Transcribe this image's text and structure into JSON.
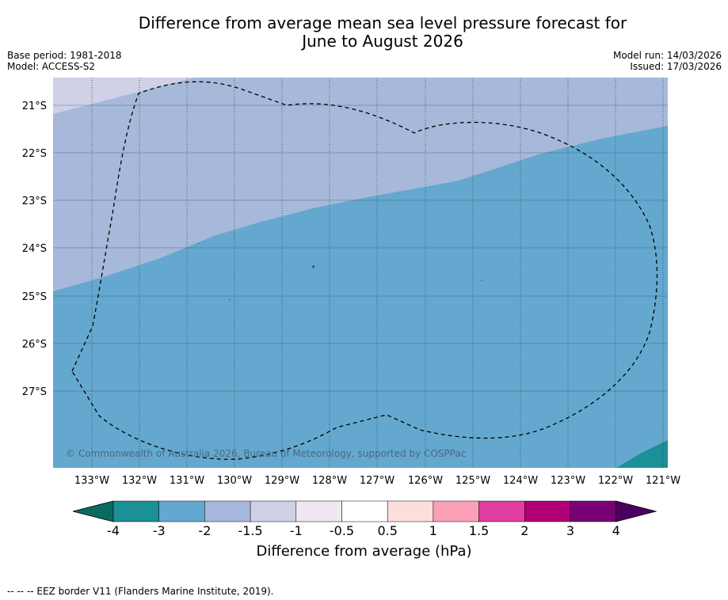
{
  "title": {
    "line1": "Difference from average mean sea level pressure forecast for",
    "line2": "June to August 2026"
  },
  "meta": {
    "base_period": "Base period: 1981-2018",
    "model": "Model: ACCESS-S2",
    "model_run": "Model run: 14/03/2026",
    "issued": "Issued: 17/03/2026"
  },
  "map": {
    "copyright": "© Commonwealth of Australia 2026, Bureau of Meteorology, supported by COSPPac",
    "lon_labels": [
      "133°W",
      "132°W",
      "131°W",
      "130°W",
      "129°W",
      "128°W",
      "127°W",
      "126°W",
      "125°W",
      "124°W",
      "123°W",
      "122°W",
      "121°W"
    ],
    "lat_labels": [
      "21°S",
      "22°S",
      "23°S",
      "24°S",
      "25°S",
      "26°S",
      "27°S"
    ]
  },
  "colorbar": {
    "label": "Difference from average (hPa)",
    "ticks": [
      "-4",
      "-3",
      "-2",
      "-1.5",
      "-1",
      "-0.5",
      "0.5",
      "1",
      "1.5",
      "2",
      "3",
      "4"
    ],
    "colors": [
      "#1b9096",
      "#64a8cf",
      "#a6b9da",
      "#d0d0e6",
      "#efe8f2",
      "#ffffff",
      "#fddedd",
      "#fba0b8",
      "#df3da0",
      "#b20078",
      "#7a0076"
    ],
    "extend_low": "#0a6b63",
    "extend_high": "#4b0060"
  },
  "footer": "--  --  -- EEZ border V11 (Flanders Marine Institute, 2019)."
}
